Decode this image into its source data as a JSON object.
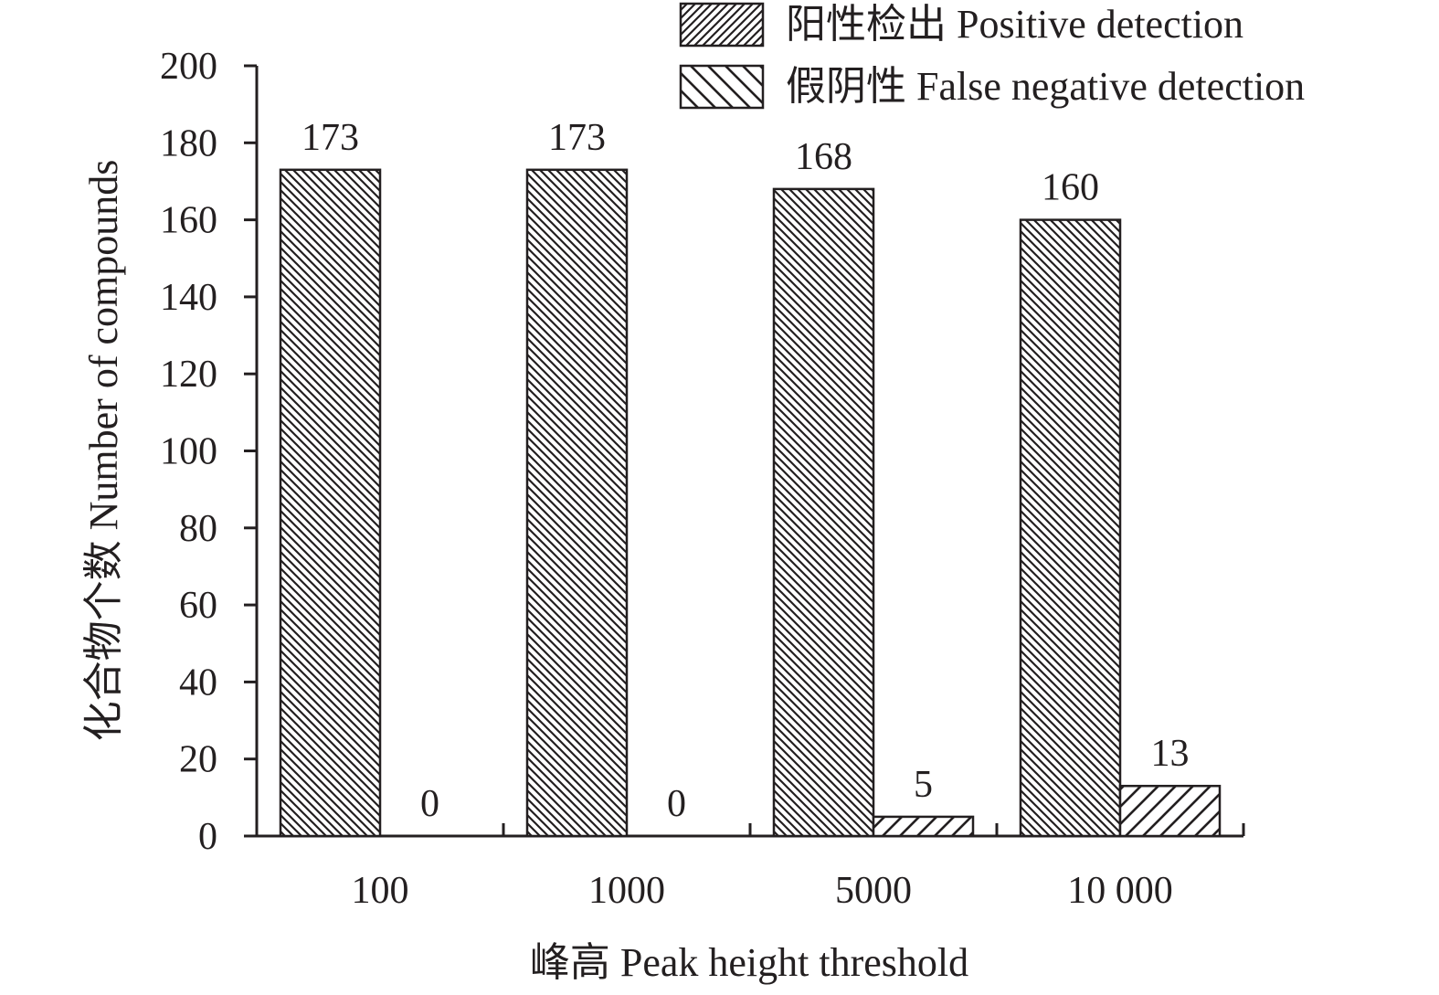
{
  "chart_data": {
    "type": "bar",
    "xlabel": "峰高 Peak height threshold",
    "ylabel": "化合物个数 Number of compounds",
    "ylim": [
      0,
      200
    ],
    "yticks": [
      "0",
      "20",
      "40",
      "60",
      "80",
      "100",
      "120",
      "140",
      "160",
      "180",
      "200"
    ],
    "categories": [
      "100",
      "1000",
      "5000",
      "10 000"
    ],
    "series": [
      {
        "name": "阳性检出 Positive detection",
        "pattern": "dense-backslash-hatch",
        "values": [
          173,
          173,
          168,
          160
        ],
        "labels": [
          "173",
          "173",
          "168",
          "160"
        ]
      },
      {
        "name": "假阴性 False negative detection",
        "pattern": "sparse-slash-hatch",
        "values": [
          0,
          0,
          5,
          13
        ],
        "labels": [
          "0",
          "0",
          "5",
          "13"
        ]
      }
    ],
    "legend": {
      "placement": "top-right",
      "items": [
        "阳性检出 Positive detection",
        "假阴性 False negative detection"
      ]
    },
    "grid": false,
    "colors": {
      "ink": "#231f20",
      "background": "#ffffff"
    }
  }
}
